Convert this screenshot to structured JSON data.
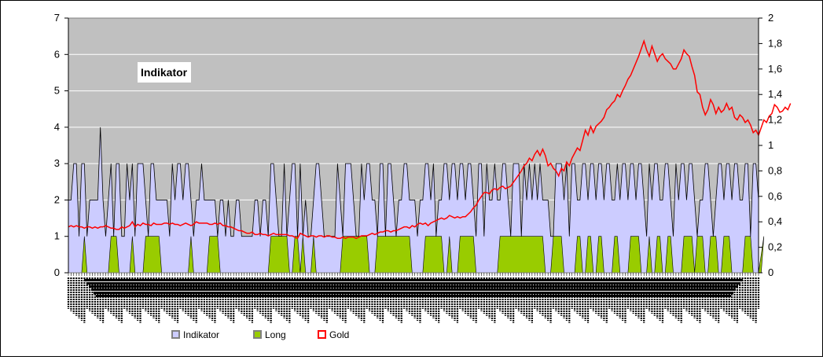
{
  "chart_data": {
    "type": "area",
    "title": "",
    "annotation": "Indikator",
    "y_left": {
      "min": 0,
      "max": 7,
      "ticks": [
        "0",
        "1",
        "2",
        "3",
        "4",
        "5",
        "6",
        "7"
      ]
    },
    "y_right": {
      "min": 0,
      "max": 2,
      "ticks": [
        "0",
        "0,2",
        "0,4",
        "0,6",
        "0,8",
        "1",
        "1,2",
        "1,4",
        "1,6",
        "1,8",
        "2"
      ]
    },
    "grid": true,
    "legend_position": "bottom",
    "colors": {
      "plot_bg": "#c0c0c0",
      "indikator": "#ccccff",
      "long": "#99cc00",
      "gold": "#ff0000",
      "frame": "#000000"
    },
    "n_points": 260,
    "series": [
      {
        "name": "Indikator",
        "axis": "left",
        "values": [
          2,
          2,
          3,
          3,
          1,
          3,
          3,
          1,
          2,
          2,
          2,
          2,
          4,
          2,
          1,
          2,
          3,
          1,
          3,
          3,
          1,
          1,
          3,
          2,
          3,
          1,
          3,
          3,
          3,
          2,
          1,
          3,
          3,
          2,
          2,
          2,
          2,
          2,
          1,
          3,
          2,
          3,
          3,
          2,
          3,
          3,
          2,
          1,
          2,
          2,
          3,
          2,
          2,
          2,
          2,
          2,
          1,
          2,
          2,
          1,
          2,
          1,
          1,
          2,
          2,
          1,
          1,
          1,
          1,
          1,
          2,
          2,
          1,
          2,
          2,
          1,
          3,
          3,
          2,
          1,
          1,
          3,
          1,
          2,
          3,
          3,
          1,
          3,
          1,
          2,
          1,
          1,
          2,
          3,
          3,
          2,
          1,
          1,
          1,
          1,
          1,
          3,
          2,
          1,
          3,
          3,
          3,
          2,
          1,
          1,
          3,
          2,
          3,
          3,
          2,
          2,
          1,
          3,
          3,
          1,
          3,
          3,
          2,
          1,
          2,
          2,
          3,
          3,
          2,
          2,
          2,
          1,
          2,
          2,
          3,
          3,
          2,
          3,
          1,
          2,
          2,
          3,
          3,
          2,
          3,
          3,
          2,
          3,
          3,
          2,
          3,
          3,
          2,
          1,
          3,
          3,
          1,
          3,
          2,
          2,
          3,
          2,
          2,
          3,
          3,
          2,
          1,
          3,
          3,
          3,
          1,
          3,
          2,
          3,
          2,
          3,
          2,
          3,
          2,
          2,
          2,
          1,
          1,
          3,
          3,
          3,
          2,
          3,
          1,
          3,
          3,
          2,
          2,
          3,
          3,
          2,
          3,
          3,
          2,
          3,
          3,
          2,
          3,
          3,
          2,
          2,
          3,
          2,
          3,
          3,
          2,
          3,
          3,
          2,
          3,
          3,
          2,
          1,
          3,
          2,
          3,
          3,
          2,
          2,
          3,
          3,
          2,
          1,
          3,
          2,
          3,
          3,
          2,
          3,
          3,
          2,
          1,
          2,
          2,
          3,
          3,
          2,
          1,
          2,
          3,
          3,
          2,
          3,
          3,
          2,
          3,
          3,
          2,
          2,
          3,
          3,
          1,
          3,
          3,
          2
        ]
      },
      {
        "name": "Long",
        "axis": "left",
        "values": [
          0,
          0,
          0,
          0,
          0,
          0,
          1,
          0,
          0,
          0,
          0,
          0,
          0,
          0,
          0,
          0,
          1,
          1,
          1,
          0,
          0,
          0,
          0,
          0,
          1,
          0,
          0,
          0,
          0,
          1,
          1,
          1,
          1,
          1,
          1,
          0,
          0,
          0,
          0,
          0,
          0,
          0,
          0,
          0,
          0,
          0,
          1,
          0,
          0,
          0,
          0,
          0,
          0,
          1,
          1,
          1,
          1,
          0,
          0,
          0,
          0,
          0,
          0,
          0,
          0,
          0,
          0,
          0,
          0,
          0,
          0,
          0,
          0,
          0,
          0,
          0,
          1,
          1,
          1,
          1,
          1,
          1,
          1,
          0,
          0,
          1,
          1,
          0,
          1,
          0,
          0,
          0,
          1,
          0,
          0,
          0,
          0,
          0,
          0,
          0,
          0,
          0,
          0,
          1,
          1,
          1,
          1,
          1,
          1,
          1,
          1,
          1,
          1,
          0,
          0,
          0,
          1,
          1,
          1,
          1,
          1,
          1,
          1,
          1,
          1,
          1,
          1,
          1,
          1,
          0,
          0,
          0,
          0,
          0,
          1,
          1,
          1,
          1,
          1,
          1,
          1,
          0,
          0,
          1,
          0,
          0,
          0,
          1,
          1,
          1,
          1,
          1,
          1,
          0,
          0,
          0,
          0,
          0,
          0,
          0,
          0,
          0,
          1,
          1,
          1,
          1,
          1,
          1,
          1,
          1,
          1,
          1,
          1,
          1,
          1,
          1,
          1,
          1,
          1,
          0,
          0,
          0,
          1,
          1,
          1,
          1,
          0,
          0,
          0,
          0,
          0,
          1,
          1,
          0,
          0,
          1,
          1,
          0,
          0,
          1,
          1,
          0,
          0,
          0,
          0,
          1,
          1,
          0,
          0,
          0,
          0,
          1,
          1,
          1,
          1,
          0,
          0,
          0,
          1,
          0,
          0,
          1,
          1,
          0,
          0,
          1,
          1,
          0,
          0,
          0,
          0,
          1,
          1,
          1,
          1,
          0,
          1,
          1,
          1,
          0,
          0,
          1,
          1,
          1,
          0,
          0,
          1,
          1,
          1,
          0,
          0,
          0,
          0,
          0,
          1,
          1,
          1,
          0,
          0,
          0,
          0,
          1
        ]
      },
      {
        "name": "Gold",
        "axis": "right",
        "values": [
          0.36,
          0.37,
          0.36,
          0.37,
          0.36,
          0.36,
          0.35,
          0.36,
          0.36,
          0.35,
          0.36,
          0.35,
          0.36,
          0.36,
          0.37,
          0.36,
          0.35,
          0.35,
          0.34,
          0.34,
          0.36,
          0.35,
          0.36,
          0.37,
          0.4,
          0.36,
          0.38,
          0.37,
          0.39,
          0.38,
          0.38,
          0.37,
          0.39,
          0.38,
          0.38,
          0.38,
          0.39,
          0.39,
          0.38,
          0.39,
          0.38,
          0.38,
          0.37,
          0.38,
          0.39,
          0.38,
          0.37,
          0.38,
          0.4,
          0.39,
          0.39,
          0.39,
          0.39,
          0.38,
          0.38,
          0.39,
          0.38,
          0.39,
          0.37,
          0.37,
          0.36,
          0.36,
          0.35,
          0.34,
          0.33,
          0.33,
          0.32,
          0.31,
          0.31,
          0.32,
          0.3,
          0.3,
          0.31,
          0.3,
          0.3,
          0.29,
          0.3,
          0.31,
          0.3,
          0.3,
          0.3,
          0.3,
          0.3,
          0.29,
          0.29,
          0.28,
          0.27,
          0.31,
          0.3,
          0.29,
          0.28,
          0.29,
          0.29,
          0.28,
          0.29,
          0.29,
          0.28,
          0.29,
          0.29,
          0.28,
          0.28,
          0.27,
          0.27,
          0.28,
          0.27,
          0.28,
          0.28,
          0.28,
          0.27,
          0.28,
          0.29,
          0.29,
          0.29,
          0.3,
          0.31,
          0.3,
          0.31,
          0.32,
          0.32,
          0.33,
          0.33,
          0.32,
          0.33,
          0.33,
          0.34,
          0.35,
          0.36,
          0.36,
          0.35,
          0.37,
          0.36,
          0.38,
          0.39,
          0.38,
          0.39,
          0.37,
          0.39,
          0.4,
          0.41,
          0.42,
          0.43,
          0.42,
          0.43,
          0.45,
          0.44,
          0.43,
          0.44,
          0.43,
          0.44,
          0.44,
          0.46,
          0.48,
          0.51,
          0.53,
          0.57,
          0.6,
          0.63,
          0.63,
          0.62,
          0.65,
          0.66,
          0.65,
          0.67,
          0.68,
          0.66,
          0.67,
          0.68,
          0.71,
          0.74,
          0.77,
          0.8,
          0.84,
          0.86,
          0.9,
          0.88,
          0.93,
          0.96,
          0.92,
          0.97,
          0.92,
          0.84,
          0.86,
          0.82,
          0.8,
          0.76,
          0.82,
          0.8,
          0.87,
          0.84,
          0.9,
          0.94,
          0.98,
          0.96,
          1.04,
          1.12,
          1.08,
          1.15,
          1.1,
          1.15,
          1.17,
          1.19,
          1.22,
          1.28,
          1.3,
          1.33,
          1.35,
          1.4,
          1.38,
          1.43,
          1.47,
          1.52,
          1.55,
          1.6,
          1.65,
          1.7,
          1.76,
          1.82,
          1.75,
          1.7,
          1.78,
          1.72,
          1.66,
          1.7,
          1.72,
          1.68,
          1.66,
          1.64,
          1.6,
          1.6,
          1.64,
          1.68,
          1.75,
          1.72,
          1.7,
          1.62,
          1.55,
          1.42,
          1.4,
          1.3,
          1.24,
          1.28,
          1.36,
          1.32,
          1.25,
          1.3,
          1.26,
          1.28,
          1.33,
          1.28,
          1.3,
          1.22,
          1.2,
          1.24,
          1.22,
          1.18,
          1.2,
          1.16,
          1.1,
          1.12,
          1.08,
          1.14,
          1.2,
          1.18,
          1.23,
          1.25,
          1.32,
          1.3,
          1.26,
          1.27,
          1.3,
          1.28,
          1.33
        ]
      }
    ],
    "legend": [
      "Indikator",
      "Long",
      "Gold"
    ]
  }
}
